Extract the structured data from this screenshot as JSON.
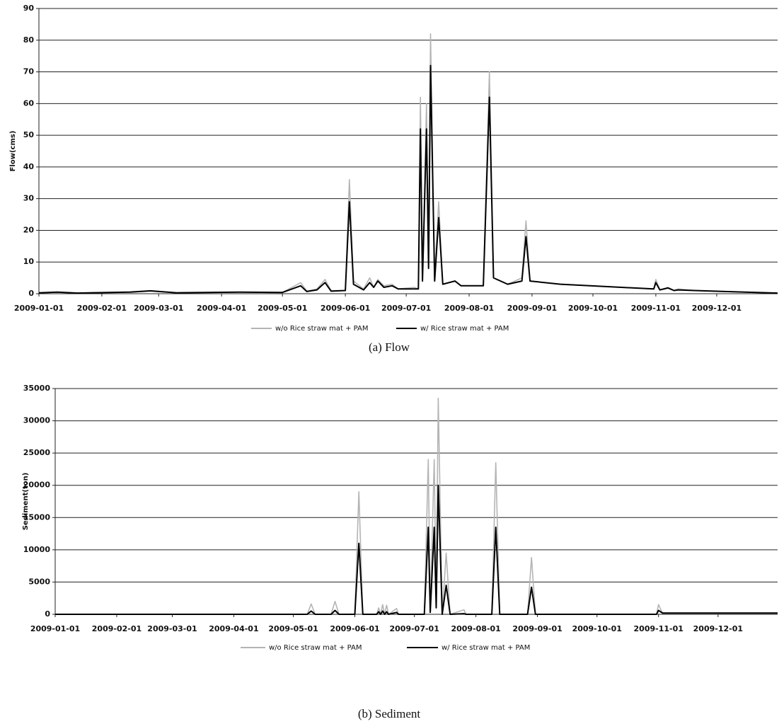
{
  "chart_data": [
    {
      "type": "line",
      "y_label": "Flow(cms)",
      "caption": "(a)  Flow",
      "x": [
        "2009-01-01",
        "2009-01-10",
        "2009-01-20",
        "2009-02-15",
        "2009-02-25",
        "2009-03-10",
        "2009-04-10",
        "2009-05-01",
        "2009-05-10",
        "2009-05-13",
        "2009-05-18",
        "2009-05-22",
        "2009-05-25",
        "2009-06-01",
        "2009-06-03",
        "2009-06-05",
        "2009-06-10",
        "2009-06-13",
        "2009-06-15",
        "2009-06-17",
        "2009-06-20",
        "2009-06-24",
        "2009-06-27",
        "2009-07-05",
        "2009-07-07",
        "2009-07-08",
        "2009-07-09",
        "2009-07-11",
        "2009-07-12",
        "2009-07-13",
        "2009-07-15",
        "2009-07-17",
        "2009-07-19",
        "2009-07-25",
        "2009-07-28",
        "2009-08-08",
        "2009-08-11",
        "2009-08-13",
        "2009-08-20",
        "2009-08-27",
        "2009-08-29",
        "2009-08-31",
        "2009-09-15",
        "2009-10-15",
        "2009-10-31",
        "2009-11-01",
        "2009-11-03",
        "2009-11-07",
        "2009-11-10",
        "2009-11-12",
        "2009-11-20",
        "2009-12-15",
        "2009-12-31"
      ],
      "series": [
        {
          "name": "w/o Rice straw mat + PAM",
          "color": "#b4b4b4",
          "values": [
            0.3,
            0.5,
            0.2,
            0.6,
            1,
            0.3,
            0.5,
            0.4,
            3.5,
            0.8,
            1.5,
            4.5,
            1,
            1,
            36,
            4,
            1.5,
            5,
            2,
            4.5,
            2.5,
            3,
            1.5,
            2,
            1.5,
            62,
            5,
            60,
            10,
            82,
            5,
            29,
            3,
            4,
            2.5,
            2.5,
            70,
            5,
            3,
            5,
            23,
            4,
            3,
            2,
            1.5,
            4.5,
            1.2,
            2,
            1,
            1.5,
            1,
            0.5,
            0.2
          ]
        },
        {
          "name": "w/ Rice straw mat + PAM",
          "color": "#000000",
          "values": [
            0.3,
            0.5,
            0.2,
            0.5,
            0.9,
            0.3,
            0.5,
            0.4,
            2.5,
            0.7,
            1.2,
            3.5,
            0.8,
            1,
            29,
            3,
            1.2,
            3.5,
            2,
            4,
            2,
            2.5,
            1.5,
            1.5,
            1.5,
            52,
            4,
            52,
            8,
            72,
            4,
            24,
            3,
            4,
            2.5,
            2.5,
            62,
            5,
            3,
            4,
            18,
            4,
            3,
            2,
            1.5,
            3.5,
            1.2,
            1.8,
            1,
            1.2,
            1,
            0.5,
            0.2
          ]
        }
      ],
      "xlim": [
        "2009-01-01",
        "2009-12-31"
      ],
      "xticks": [
        "2009-01-01",
        "2009-02-01",
        "2009-03-01",
        "2009-04-01",
        "2009-05-01",
        "2009-06-01",
        "2009-07-01",
        "2009-08-01",
        "2009-09-01",
        "2009-10-01",
        "2009-11-01",
        "2009-12-01"
      ],
      "ylim": [
        0,
        90
      ],
      "yticks": [
        0,
        10,
        20,
        30,
        40,
        50,
        60,
        70,
        80,
        90
      ],
      "grid": true
    },
    {
      "type": "line",
      "y_label": "Sediment(ton)",
      "caption": "(b)  Sediment",
      "x": [
        "2009-01-01",
        "2009-05-08",
        "2009-05-10",
        "2009-05-12",
        "2009-05-20",
        "2009-05-22",
        "2009-05-24",
        "2009-06-01",
        "2009-06-03",
        "2009-06-05",
        "2009-06-12",
        "2009-06-13",
        "2009-06-14",
        "2009-06-15",
        "2009-06-16",
        "2009-06-17",
        "2009-06-18",
        "2009-06-22",
        "2009-06-23",
        "2009-07-06",
        "2009-07-08",
        "2009-07-09",
        "2009-07-11",
        "2009-07-12",
        "2009-07-13",
        "2009-07-15",
        "2009-07-17",
        "2009-07-19",
        "2009-07-26",
        "2009-07-27",
        "2009-08-09",
        "2009-08-11",
        "2009-08-13",
        "2009-08-27",
        "2009-08-29",
        "2009-08-31",
        "2009-10-31",
        "2009-11-01",
        "2009-11-03",
        "2009-12-31"
      ],
      "series": [
        {
          "name": "w/o Rice straw mat + PAM",
          "color": "#b4b4b4",
          "values": [
            0,
            0,
            1600,
            0,
            0,
            2000,
            0,
            0,
            19000,
            0,
            0,
            1000,
            0,
            1500,
            0,
            1400,
            0,
            900,
            0,
            0,
            24000,
            500,
            24000,
            2000,
            33500,
            0,
            9500,
            0,
            700,
            0,
            0,
            23500,
            0,
            0,
            8800,
            0,
            0,
            1500,
            200,
            200
          ]
        },
        {
          "name": "w/ Rice straw mat + PAM",
          "color": "#000000",
          "values": [
            0,
            0,
            500,
            0,
            0,
            600,
            0,
            0,
            11000,
            0,
            0,
            400,
            0,
            500,
            0,
            400,
            0,
            300,
            0,
            0,
            13500,
            300,
            13500,
            1000,
            20000,
            0,
            4500,
            0,
            100,
            0,
            0,
            13500,
            0,
            0,
            4200,
            0,
            0,
            600,
            200,
            200
          ]
        }
      ],
      "xlim": [
        "2009-01-01",
        "2009-12-31"
      ],
      "xticks": [
        "2009-01-01",
        "2009-02-01",
        "2009-03-01",
        "2009-04-01",
        "2009-05-01",
        "2009-06-01",
        "2009-07-01",
        "2009-08-01",
        "2009-09-01",
        "2009-10-01",
        "2009-11-01",
        "2009-12-01"
      ],
      "ylim": [
        0,
        35000
      ],
      "yticks": [
        0,
        5000,
        10000,
        15000,
        20000,
        25000,
        30000,
        35000
      ],
      "grid": true
    }
  ]
}
